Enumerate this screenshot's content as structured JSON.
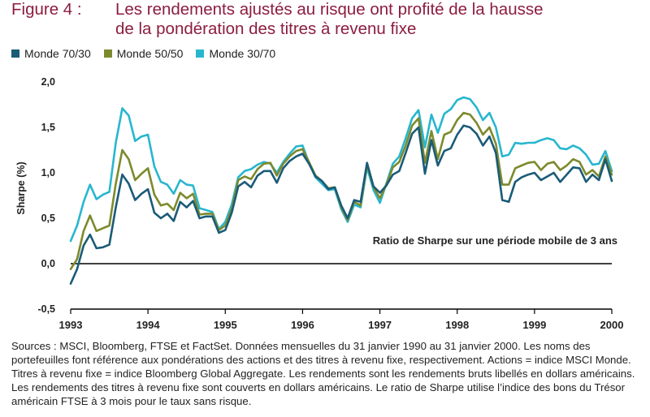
{
  "title": {
    "prefix": "Figure 4 :",
    "line1": "Les rendements ajustés au risque ont profité de la hausse",
    "line2": "de la pondération des titres à revenu fixe"
  },
  "colors": {
    "title": "#8c1d40",
    "monde_70_30": "#1a5b78",
    "monde_50_50": "#7d8a2c",
    "monde_30_70": "#28b6cf",
    "axis": "#000000"
  },
  "sources": "Sources : MSCI, Bloomberg, FTSE et FactSet. Données mensuelles du 31 janvier 1990 au 31 janvier 2000. Les noms des portefeuilles font référence aux pondérations des actions et des titres à revenu fixe, respectivement. Actions = indice MSCI Monde. Titres à revenu fixe = indice Bloomberg Global Aggregate. Les rendements sont les rendements bruts libellés en dollars américains. Les rendements des titres à revenu fixe sont couverts en dollars américains. Le ratio de Sharpe utilise l’indice des bons du Trésor américain FTSE à 3 mois pour le taux sans risque.",
  "chart_data": {
    "type": "line",
    "ylabel": "Sharpe (%)",
    "annotation": "Ratio de Sharpe sur une période mobile de 3 ans",
    "xlim": [
      1993,
      2000
    ],
    "ylim": [
      -0.5,
      2.0
    ],
    "x_ticks": [
      "1993",
      "1994",
      "1995",
      "1996",
      "1997",
      "1998",
      "1999",
      "2000"
    ],
    "y_ticks": [
      "2,0",
      "1,5",
      "1,0",
      "0,5",
      "0,0",
      "-0,5"
    ],
    "grid": false,
    "legend_position": "top-left",
    "x": [
      1993.0,
      1993.083,
      1993.167,
      1993.25,
      1993.333,
      1993.417,
      1993.5,
      1993.583,
      1993.667,
      1993.75,
      1993.833,
      1993.917,
      1994.0,
      1994.083,
      1994.167,
      1994.25,
      1994.333,
      1994.417,
      1994.5,
      1994.583,
      1994.667,
      1994.75,
      1994.833,
      1994.917,
      1995.0,
      1995.083,
      1995.167,
      1995.25,
      1995.333,
      1995.417,
      1995.5,
      1995.583,
      1995.667,
      1995.75,
      1995.833,
      1995.917,
      1996.0,
      1996.083,
      1996.167,
      1996.25,
      1996.333,
      1996.417,
      1996.5,
      1996.583,
      1996.667,
      1996.75,
      1996.833,
      1996.917,
      1997.0,
      1997.083,
      1997.167,
      1997.25,
      1997.333,
      1997.417,
      1997.5,
      1997.583,
      1997.667,
      1997.75,
      1997.833,
      1997.917,
      1998.0,
      1998.083,
      1998.167,
      1998.25,
      1998.333,
      1998.417,
      1998.5,
      1998.583,
      1998.667,
      1998.75,
      1998.833,
      1998.917,
      1999.0,
      1999.083,
      1999.167,
      1999.25,
      1999.333,
      1999.417,
      1999.5,
      1999.583,
      1999.667,
      1999.75,
      1999.833,
      1999.917,
      2000.0
    ],
    "series": [
      {
        "name": "Monde 70/30",
        "color": "#1a5b78",
        "values": [
          -0.22,
          -0.06,
          0.2,
          0.32,
          0.17,
          0.18,
          0.21,
          0.62,
          0.98,
          0.88,
          0.7,
          0.77,
          0.82,
          0.56,
          0.5,
          0.55,
          0.47,
          0.68,
          0.62,
          0.69,
          0.5,
          0.52,
          0.52,
          0.34,
          0.37,
          0.56,
          0.85,
          0.9,
          0.84,
          0.97,
          1.02,
          1.02,
          0.89,
          1.05,
          1.13,
          1.18,
          1.21,
          1.1,
          0.96,
          0.91,
          0.82,
          0.84,
          0.64,
          0.5,
          0.7,
          0.68,
          1.11,
          0.85,
          0.78,
          0.86,
          0.98,
          1.02,
          1.22,
          1.43,
          1.5,
          0.99,
          1.36,
          1.08,
          1.24,
          1.27,
          1.42,
          1.52,
          1.5,
          1.43,
          1.3,
          1.4,
          1.22,
          0.7,
          0.68,
          0.9,
          0.95,
          0.98,
          1.0,
          0.92,
          0.96,
          1.0,
          0.9,
          0.98,
          1.06,
          1.05,
          0.9,
          0.98,
          0.92,
          1.15,
          0.91
        ]
      },
      {
        "name": "Monde 50/50",
        "color": "#7d8a2c",
        "values": [
          -0.06,
          0.05,
          0.36,
          0.53,
          0.36,
          0.39,
          0.42,
          0.88,
          1.25,
          1.15,
          0.92,
          0.99,
          1.05,
          0.76,
          0.64,
          0.66,
          0.59,
          0.78,
          0.72,
          0.77,
          0.54,
          0.55,
          0.55,
          0.37,
          0.42,
          0.6,
          0.92,
          0.96,
          0.93,
          1.04,
          1.1,
          1.11,
          0.97,
          1.1,
          1.18,
          1.24,
          1.26,
          1.12,
          0.97,
          0.91,
          0.83,
          0.84,
          0.62,
          0.48,
          0.68,
          0.64,
          1.09,
          0.84,
          0.72,
          0.87,
          1.06,
          1.12,
          1.3,
          1.52,
          1.6,
          1.11,
          1.46,
          1.15,
          1.42,
          1.45,
          1.58,
          1.66,
          1.64,
          1.55,
          1.42,
          1.5,
          1.32,
          0.87,
          0.87,
          1.05,
          1.08,
          1.11,
          1.12,
          1.03,
          1.1,
          1.12,
          1.03,
          1.08,
          1.15,
          1.12,
          0.98,
          1.03,
          0.96,
          1.18,
          0.98
        ]
      },
      {
        "name": "Monde 30/70",
        "color": "#28b6cf",
        "values": [
          0.25,
          0.42,
          0.68,
          0.87,
          0.71,
          0.76,
          0.79,
          1.33,
          1.71,
          1.63,
          1.35,
          1.4,
          1.42,
          1.07,
          0.9,
          0.87,
          0.77,
          0.92,
          0.87,
          0.86,
          0.61,
          0.59,
          0.57,
          0.38,
          0.46,
          0.65,
          0.95,
          1.02,
          1.04,
          1.09,
          1.12,
          1.1,
          1.0,
          1.12,
          1.21,
          1.29,
          1.3,
          1.11,
          0.95,
          0.88,
          0.81,
          0.82,
          0.6,
          0.46,
          0.65,
          0.62,
          1.06,
          0.81,
          0.67,
          0.88,
          1.1,
          1.18,
          1.38,
          1.6,
          1.69,
          1.28,
          1.64,
          1.44,
          1.65,
          1.7,
          1.8,
          1.83,
          1.81,
          1.72,
          1.58,
          1.66,
          1.5,
          1.18,
          1.2,
          1.33,
          1.32,
          1.33,
          1.33,
          1.36,
          1.38,
          1.36,
          1.27,
          1.26,
          1.3,
          1.27,
          1.2,
          1.09,
          1.1,
          1.24,
          1.02
        ]
      }
    ]
  }
}
